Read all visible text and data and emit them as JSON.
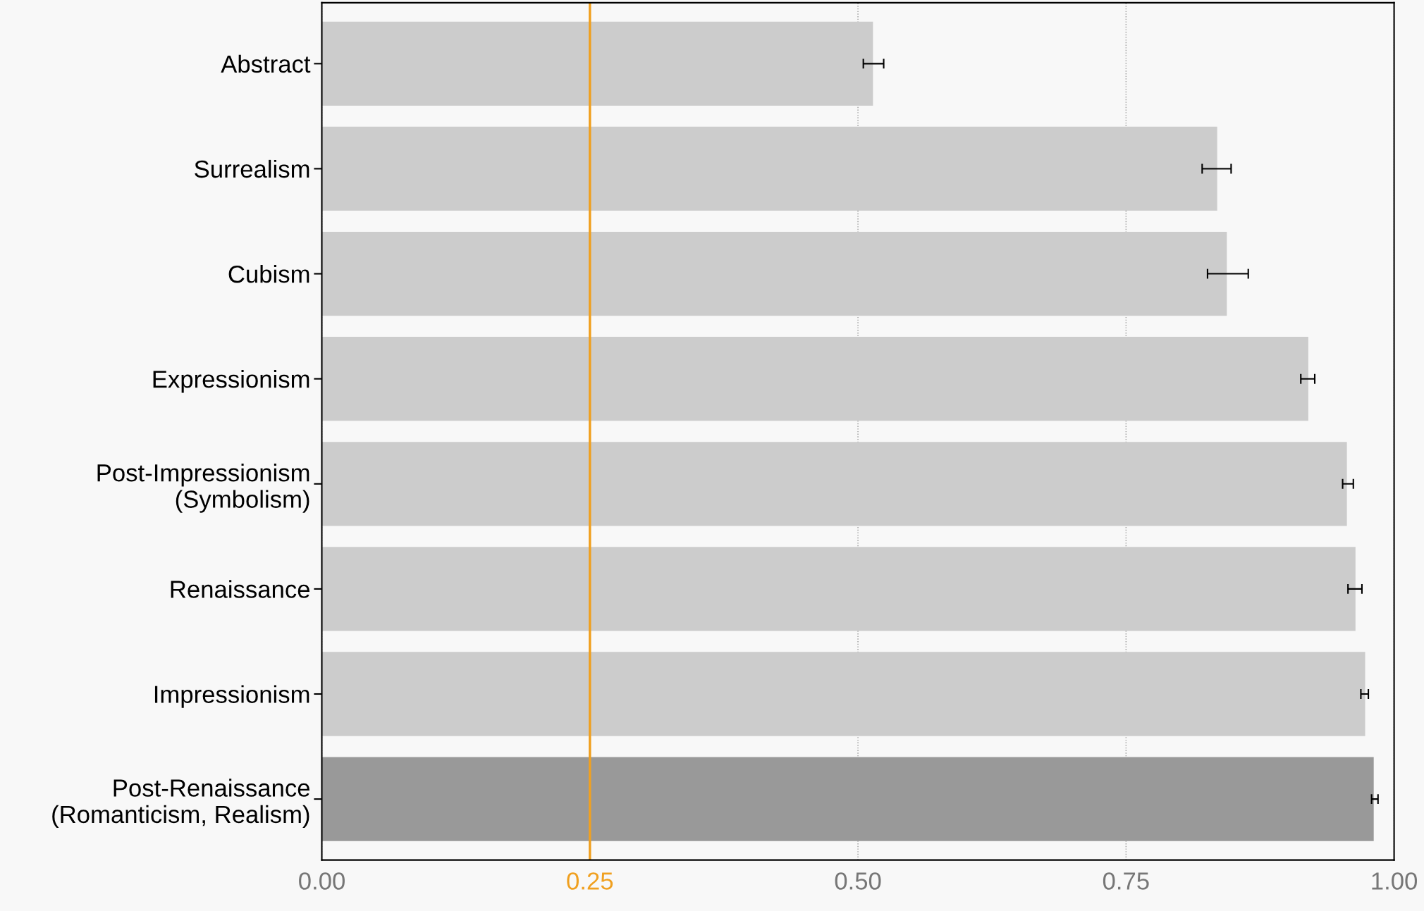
{
  "chart_data": {
    "type": "bar",
    "orientation": "horizontal",
    "categories": [
      "Abstract",
      "Surrealism",
      "Cubism",
      "Expressionism",
      "Post-Impressionism\n(Symbolism)",
      "Renaissance",
      "Impressionism",
      "Post-Renaissance\n(Romanticism, Realism)"
    ],
    "values": [
      0.514,
      0.835,
      0.844,
      0.92,
      0.956,
      0.964,
      0.973,
      0.981
    ],
    "errors": [
      [
        0.505,
        0.524
      ],
      [
        0.821,
        0.848
      ],
      [
        0.826,
        0.864
      ],
      [
        0.913,
        0.926
      ],
      [
        0.952,
        0.962
      ],
      [
        0.957,
        0.97
      ],
      [
        0.969,
        0.976
      ],
      [
        0.979,
        0.985
      ]
    ],
    "colors": [
      "#cccccc",
      "#cccccc",
      "#cccccc",
      "#cccccc",
      "#cccccc",
      "#cccccc",
      "#cccccc",
      "#999999"
    ],
    "xlim": [
      0,
      1
    ],
    "xticks": [
      {
        "value": 0,
        "label": "0.00"
      },
      0.25,
      {
        "value": 0.5,
        "label": "0.50"
      },
      0.75,
      {
        "value": 1,
        "label": "1.00"
      }
    ],
    "ref_lines": [
      {
        "axis": "x",
        "value": 0.25,
        "color": "#f0a020"
      }
    ],
    "grid": "x"
  }
}
